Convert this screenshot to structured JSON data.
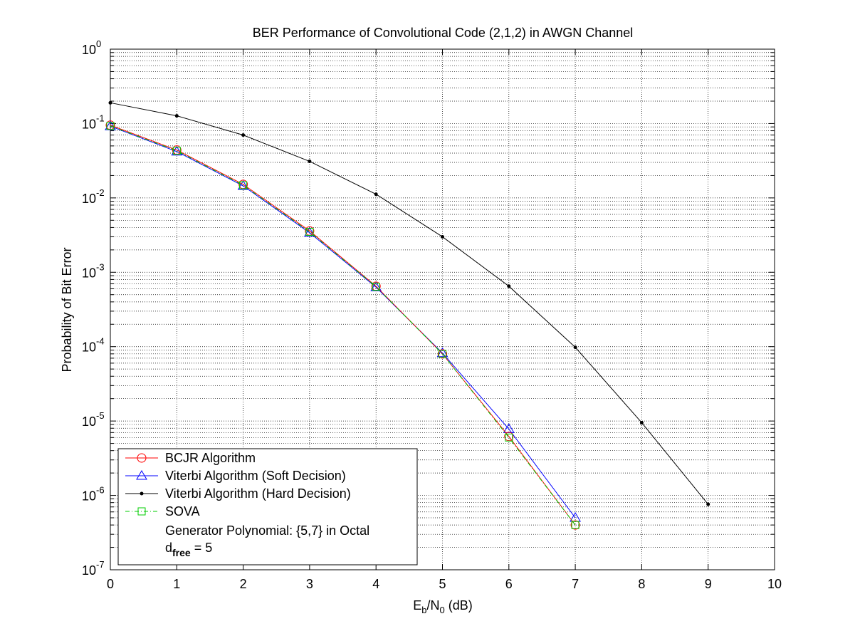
{
  "chart_data": {
    "type": "line",
    "title": "BER Performance of Convolutional Code (2,1,2) in AWGN Channel",
    "xlabel": {
      "main": "E",
      "sub1": "b",
      "mid": "/N",
      "sub2": "0",
      "tail": " (dB)"
    },
    "ylabel": "Probability of Bit Error",
    "xlim": [
      0,
      10
    ],
    "ylim": [
      1e-07,
      1
    ],
    "yscale": "log",
    "grid": "major and minor (dotted)",
    "x_ticks": [
      "0",
      "1",
      "2",
      "3",
      "4",
      "5",
      "6",
      "7",
      "8",
      "9",
      "10"
    ],
    "y_ticks": [
      {
        "base": "10",
        "exp": "0"
      },
      {
        "base": "10",
        "exp": "-1"
      },
      {
        "base": "10",
        "exp": "-2"
      },
      {
        "base": "10",
        "exp": "-3"
      },
      {
        "base": "10",
        "exp": "-4"
      },
      {
        "base": "10",
        "exp": "-5"
      },
      {
        "base": "10",
        "exp": "-6"
      },
      {
        "base": "10",
        "exp": "-7"
      }
    ],
    "legend_placement": "bottom-left",
    "series": [
      {
        "name": "BCJR Algorithm",
        "color": "#ff0000",
        "marker": "circle",
        "line": "solid",
        "x": [
          0,
          1,
          2,
          3,
          4,
          5,
          6,
          7
        ],
        "y": [
          0.095,
          0.044,
          0.0152,
          0.0036,
          0.00065,
          8e-05,
          6.2e-06,
          4e-07
        ]
      },
      {
        "name": "Viterbi Algorithm (Soft Decision)",
        "color": "#0000ff",
        "marker": "triangle",
        "line": "solid",
        "x": [
          0,
          1,
          2,
          3,
          4,
          5,
          6,
          7
        ],
        "y": [
          0.092,
          0.042,
          0.0145,
          0.0034,
          0.00063,
          8.2e-05,
          7.8e-06,
          5e-07
        ]
      },
      {
        "name": "Viterbi Algorithm (Hard Decision)",
        "color": "#000000",
        "marker": "dot",
        "line": "solid",
        "x": [
          0,
          1,
          2,
          3,
          4,
          5,
          6,
          7,
          8,
          9
        ],
        "y": [
          0.19,
          0.127,
          0.07,
          0.031,
          0.0112,
          0.003,
          0.00065,
          9.8e-05,
          9.5e-06,
          7.6e-07
        ]
      },
      {
        "name": "SOVA",
        "color": "#00cc00",
        "marker": "square",
        "line": "dashdot",
        "x": [
          0,
          1,
          2,
          3,
          4,
          5,
          6,
          7
        ],
        "y": [
          0.093,
          0.043,
          0.0148,
          0.0035,
          0.00064,
          8e-05,
          6e-06,
          4e-07
        ]
      }
    ],
    "legend_note": {
      "line1": "Generator Polynomial: {5,7} in Octal",
      "dfree_main": "d",
      "dfree_sub": "free",
      "dfree_tail": " = 5"
    }
  }
}
